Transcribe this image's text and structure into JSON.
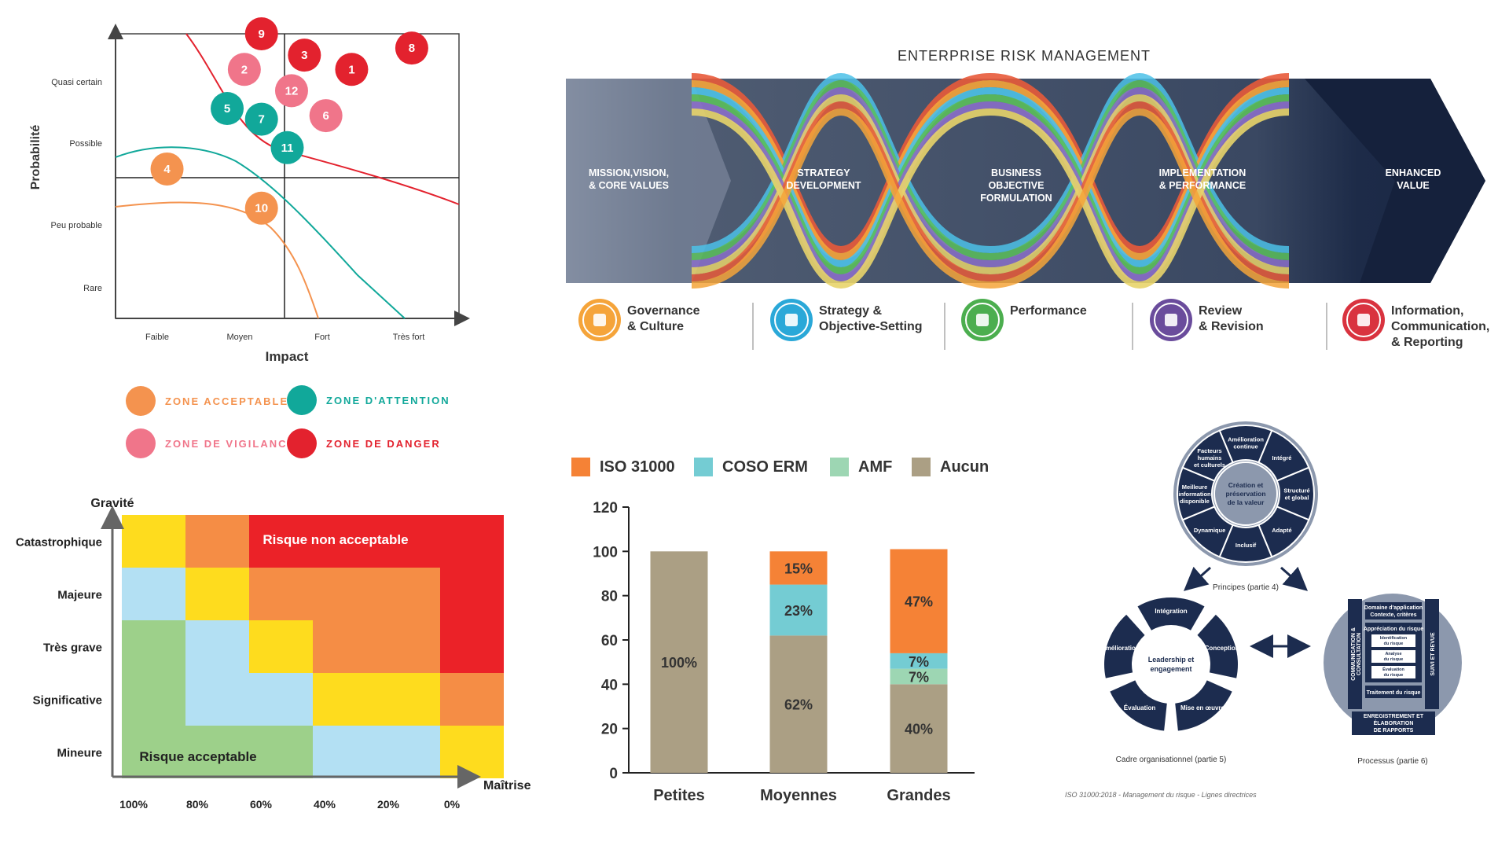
{
  "colors": {
    "acceptable": "#f4934f",
    "attention": "#11a89a",
    "vigilance": "#f0758a",
    "danger": "#e3222e",
    "navy": "#1c2c4f",
    "iso": "#f58236",
    "coso": "#74ccd3",
    "amf": "#9dd6b3",
    "aucun": "#ab9f84"
  },
  "matrix": {
    "y_title": "Probabilité",
    "x_title": "Impact",
    "y_ticks": [
      "Quasi certain",
      "Possible",
      "Peu probable",
      "Rare"
    ],
    "x_ticks": [
      "Faible",
      "Moyen",
      "Fort",
      "Très fort"
    ],
    "risks": [
      {
        "label": "9",
        "zone": "danger",
        "impact": 1.7,
        "prob": 4.0
      },
      {
        "label": "3",
        "zone": "danger",
        "impact": 2.2,
        "prob": 3.7
      },
      {
        "label": "1",
        "zone": "danger",
        "impact": 2.75,
        "prob": 3.5
      },
      {
        "label": "8",
        "zone": "danger",
        "impact": 3.45,
        "prob": 3.8
      },
      {
        "label": "2",
        "zone": "vigilance",
        "impact": 1.5,
        "prob": 3.5
      },
      {
        "label": "12",
        "zone": "vigilance",
        "impact": 2.05,
        "prob": 3.2
      },
      {
        "label": "6",
        "zone": "vigilance",
        "impact": 2.45,
        "prob": 2.85
      },
      {
        "label": "5",
        "zone": "attention",
        "impact": 1.3,
        "prob": 2.95
      },
      {
        "label": "7",
        "zone": "attention",
        "impact": 1.7,
        "prob": 2.8
      },
      {
        "label": "11",
        "zone": "attention",
        "impact": 2.0,
        "prob": 2.4
      },
      {
        "label": "4",
        "zone": "acceptable",
        "impact": 0.6,
        "prob": 2.1
      },
      {
        "label": "10",
        "zone": "acceptable",
        "impact": 1.7,
        "prob": 1.55
      }
    ],
    "legend": [
      {
        "label": "ZONE ACCEPTABLE",
        "zone": "acceptable"
      },
      {
        "label": "ZONE D'ATTENTION",
        "zone": "attention"
      },
      {
        "label": "ZONE DE VIGILANCE",
        "zone": "vigilance"
      },
      {
        "label": "ZONE DE DANGER",
        "zone": "danger"
      }
    ]
  },
  "erm": {
    "title": "ENTERPRISE RISK MANAGEMENT",
    "stages": [
      {
        "l1": "MISSION,VISION,",
        "l2": "& CORE VALUES",
        "l3": ""
      },
      {
        "l1": "STRATEGY",
        "l2": "DEVELOPMENT",
        "l3": ""
      },
      {
        "l1": "BUSINESS",
        "l2": "OBJECTIVE",
        "l3": "FORMULATION"
      },
      {
        "l1": "IMPLEMENTATION",
        "l2": "& PERFORMANCE",
        "l3": ""
      },
      {
        "l1": "ENHANCED",
        "l2": "VALUE",
        "l3": ""
      }
    ],
    "components": [
      {
        "l1": "Governance",
        "l2": "& Culture",
        "l3": "",
        "color": "#f5a43a",
        "icon": "people-icon"
      },
      {
        "l1": "Strategy &",
        "l2": "Objective-Setting",
        "l3": "",
        "color": "#2aa8d8",
        "icon": "gears-icon"
      },
      {
        "l1": "Performance",
        "l2": "",
        "l3": "",
        "color": "#4cae4f",
        "icon": "magnifier-icon"
      },
      {
        "l1": "Review",
        "l2": "& Revision",
        "l3": "",
        "color": "#6a4c9c",
        "icon": "document-icon"
      },
      {
        "l1": "Information,",
        "l2": "Communication,",
        "l3": "& Reporting",
        "color": "#d9333f",
        "icon": "bar-chart-icon"
      }
    ]
  },
  "heatmap": {
    "y_title": "Gravité",
    "x_title": "Maîtrise",
    "rows": [
      "Catastrophique",
      "Majeure",
      "Très grave",
      "Significative",
      "Mineure"
    ],
    "cols": [
      "100%",
      "80%",
      "60%",
      "40%",
      "20%",
      "0%"
    ],
    "label_bad": "Risque non acceptable",
    "label_good": "Risque acceptable",
    "palette": {
      "G": "#9dd08a",
      "B": "#b3e0f3",
      "Y": "#fedc1e",
      "O": "#f58d45",
      "R": "#eb2228"
    },
    "grid": [
      [
        "Y",
        "O",
        "R",
        "R",
        "R",
        "R"
      ],
      [
        "B",
        "Y",
        "O",
        "O",
        "O",
        "R"
      ],
      [
        "G",
        "B",
        "Y",
        "O",
        "O",
        "R"
      ],
      [
        "G",
        "B",
        "B",
        "Y",
        "Y",
        "O"
      ],
      [
        "G",
        "G",
        "G",
        "B",
        "B",
        "Y"
      ]
    ]
  },
  "chart_data": {
    "type": "bar",
    "stacked": true,
    "categories": [
      "Petites",
      "Moyennes",
      "Grandes"
    ],
    "series": [
      {
        "name": "Aucun",
        "values": [
          100,
          62,
          40
        ],
        "labels": [
          "100%",
          "62%",
          "40%"
        ]
      },
      {
        "name": "AMF",
        "values": [
          0,
          0,
          7
        ],
        "labels": [
          "",
          "",
          "7%"
        ]
      },
      {
        "name": "COSO ERM",
        "values": [
          0,
          23,
          7
        ],
        "labels": [
          "",
          "23%",
          "7%"
        ]
      },
      {
        "name": "ISO 31000",
        "values": [
          0,
          15,
          47
        ],
        "labels": [
          "",
          "15%",
          "47%"
        ]
      }
    ],
    "legend": [
      "ISO 31000",
      "COSO ERM",
      "AMF",
      "Aucun"
    ],
    "yticks": [
      "0",
      "20",
      "40",
      "60",
      "80",
      "100",
      "120"
    ],
    "ylim": [
      0,
      120
    ],
    "title": "",
    "xlabel": "",
    "ylabel": ""
  },
  "iso": {
    "center": [
      "Création et",
      "préservation",
      "de la valeur"
    ],
    "principles": [
      [
        "Amélioration",
        "continue"
      ],
      [
        "Intégré"
      ],
      [
        "Structuré",
        "et global"
      ],
      [
        "Adapté"
      ],
      [
        "Inclusif"
      ],
      [
        "Dynamique"
      ],
      [
        "Meilleure",
        "information",
        "disponible"
      ],
      [
        "Facteurs",
        "humains",
        "et culturels"
      ]
    ],
    "principles_caption": "Principes (partie 4)",
    "framework_center": [
      "Leadership et",
      "engagement"
    ],
    "framework": [
      "Intégration",
      "Conception",
      "Mise en œuvre",
      "Évaluation",
      "Amélioration"
    ],
    "framework_caption": "Cadre organisationnel (partie 5)",
    "process": {
      "scope": [
        "Domaine d'application",
        "Contexte, critères"
      ],
      "assessment": "Appréciation du risque",
      "identification": [
        "Identification",
        "du risque"
      ],
      "analysis": [
        "Analyse",
        "du risque"
      ],
      "evaluation": [
        "Évaluation",
        "du risque"
      ],
      "treatment": "Traitement du risque",
      "recording": [
        "ENREGISTREMENT ET",
        "ÉLABORATION",
        "DE RAPPORTS"
      ],
      "communication": [
        "COMMUNICATION &",
        "CONSULTATION"
      ],
      "monitoring": "SUIVI ET REVUE"
    },
    "process_caption": "Processus (partie 6)",
    "footnote": "ISO 31000:2018 - Management du risque - Lignes directrices"
  }
}
